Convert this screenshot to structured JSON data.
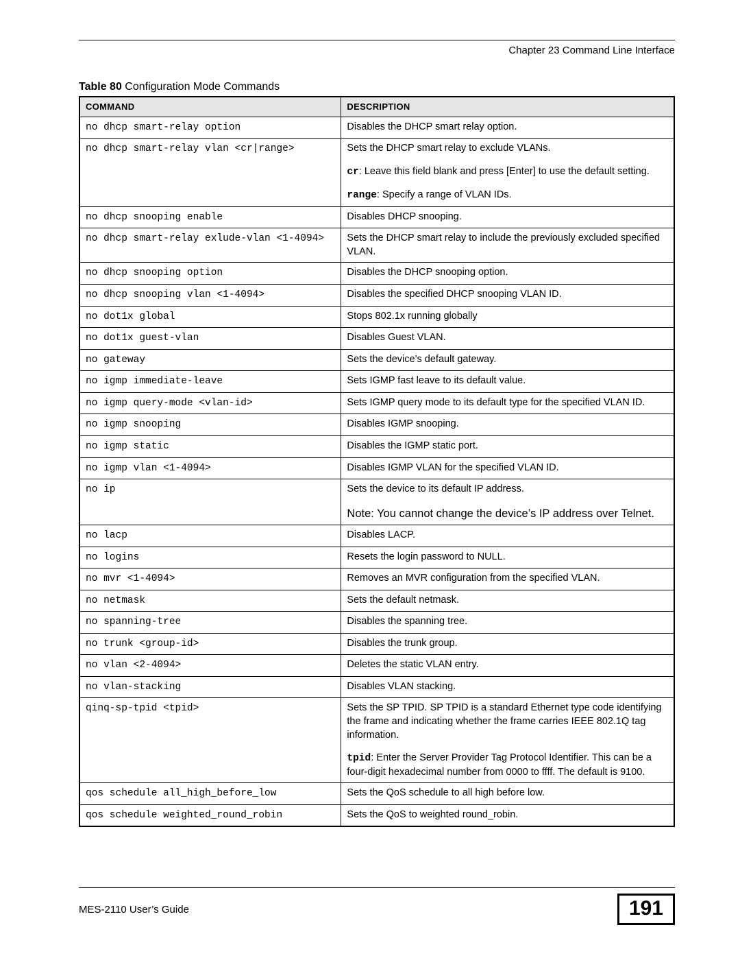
{
  "header": {
    "chapter_line": "Chapter 23 Command Line Interface"
  },
  "table": {
    "caption_bold": "Table 80",
    "caption_rest": "   Configuration Mode Commands",
    "head_command": "COMMAND",
    "head_description": "DESCRIPTION",
    "rows": [
      {
        "cmd": "no dhcp smart-relay option",
        "desc": "Disables the DHCP smart relay option."
      },
      {
        "cmd": "no dhcp smart-relay vlan <cr|range>",
        "desc_multi": [
          {
            "plain": "Sets the DHCP smart relay to exclude VLANs."
          },
          {
            "mono": "cr",
            "plain": ": Leave this field blank and press [Enter] to use the default setting."
          },
          {
            "mono": "range",
            "plain": ": Specify a range of VLAN IDs."
          }
        ]
      },
      {
        "cmd": "no dhcp snooping enable",
        "desc": "Disables DHCP snooping."
      },
      {
        "cmd": "no dhcp smart-relay exlude-vlan <1-4094>",
        "desc": "Sets the DHCP smart relay to include the previously excluded specified VLAN."
      },
      {
        "cmd": "no dhcp snooping option",
        "desc": "Disables the DHCP snooping option."
      },
      {
        "cmd": "no dhcp snooping vlan <1-4094>",
        "desc": "Disables the specified DHCP snooping VLAN ID."
      },
      {
        "cmd": "no dot1x global",
        "desc": "Stops 802.1x running globally"
      },
      {
        "cmd": "no dot1x guest-vlan",
        "desc": "Disables Guest VLAN."
      },
      {
        "cmd": "no gateway",
        "desc": "Sets the device’s default gateway."
      },
      {
        "cmd": "no igmp immediate-leave",
        "desc": "Sets IGMP fast leave to its default value."
      },
      {
        "cmd": "no igmp query-mode <vlan-id>",
        "desc": "Sets IGMP query mode to its default type for the specified VLAN ID."
      },
      {
        "cmd": "no igmp snooping",
        "desc": "Disables IGMP snooping."
      },
      {
        "cmd": "no igmp static",
        "desc": "Disables the IGMP static port."
      },
      {
        "cmd": "no igmp vlan <1-4094>",
        "desc": "Disables IGMP VLAN for the specified VLAN ID."
      },
      {
        "cmd": "no ip",
        "desc": "Sets the device to its default IP address.",
        "note": "Note: You cannot change the device’s IP address over Telnet."
      },
      {
        "cmd": "no lacp",
        "desc": "Disables LACP."
      },
      {
        "cmd": "no logins",
        "desc": "Resets the login password to NULL."
      },
      {
        "cmd": "no mvr <1-4094>",
        "desc": "Removes an MVR configuration from the specified VLAN."
      },
      {
        "cmd": "no netmask",
        "desc": "Sets the default netmask."
      },
      {
        "cmd": "no spanning-tree",
        "desc": "Disables the spanning tree."
      },
      {
        "cmd": "no trunk <group-id>",
        "desc": "Disables the trunk group."
      },
      {
        "cmd": "no vlan <2-4094>",
        "desc": "Deletes the static VLAN entry."
      },
      {
        "cmd": "no vlan-stacking",
        "desc": "Disables VLAN stacking."
      },
      {
        "cmd": "qinq-sp-tpid <tpid>",
        "desc_multi": [
          {
            "plain": "Sets the SP TPID. SP TPID is a standard Ethernet type code identifying the frame and indicating whether the frame carries IEEE 802.1Q tag information."
          },
          {
            "mono": "tpid",
            "plain": ": Enter the Server Provider Tag Protocol Identifier. This can be a four-digit hexadecimal number from 0000 to ffff. The default is 9100."
          }
        ]
      },
      {
        "cmd": "qos schedule all_high_before_low",
        "desc": "Sets the QoS schedule to all high before low."
      },
      {
        "cmd": "qos schedule weighted_round_robin",
        "desc": "Sets the QoS to weighted round_robin."
      }
    ]
  },
  "footer": {
    "guide": "MES-2110 User’s Guide",
    "page": "191"
  }
}
